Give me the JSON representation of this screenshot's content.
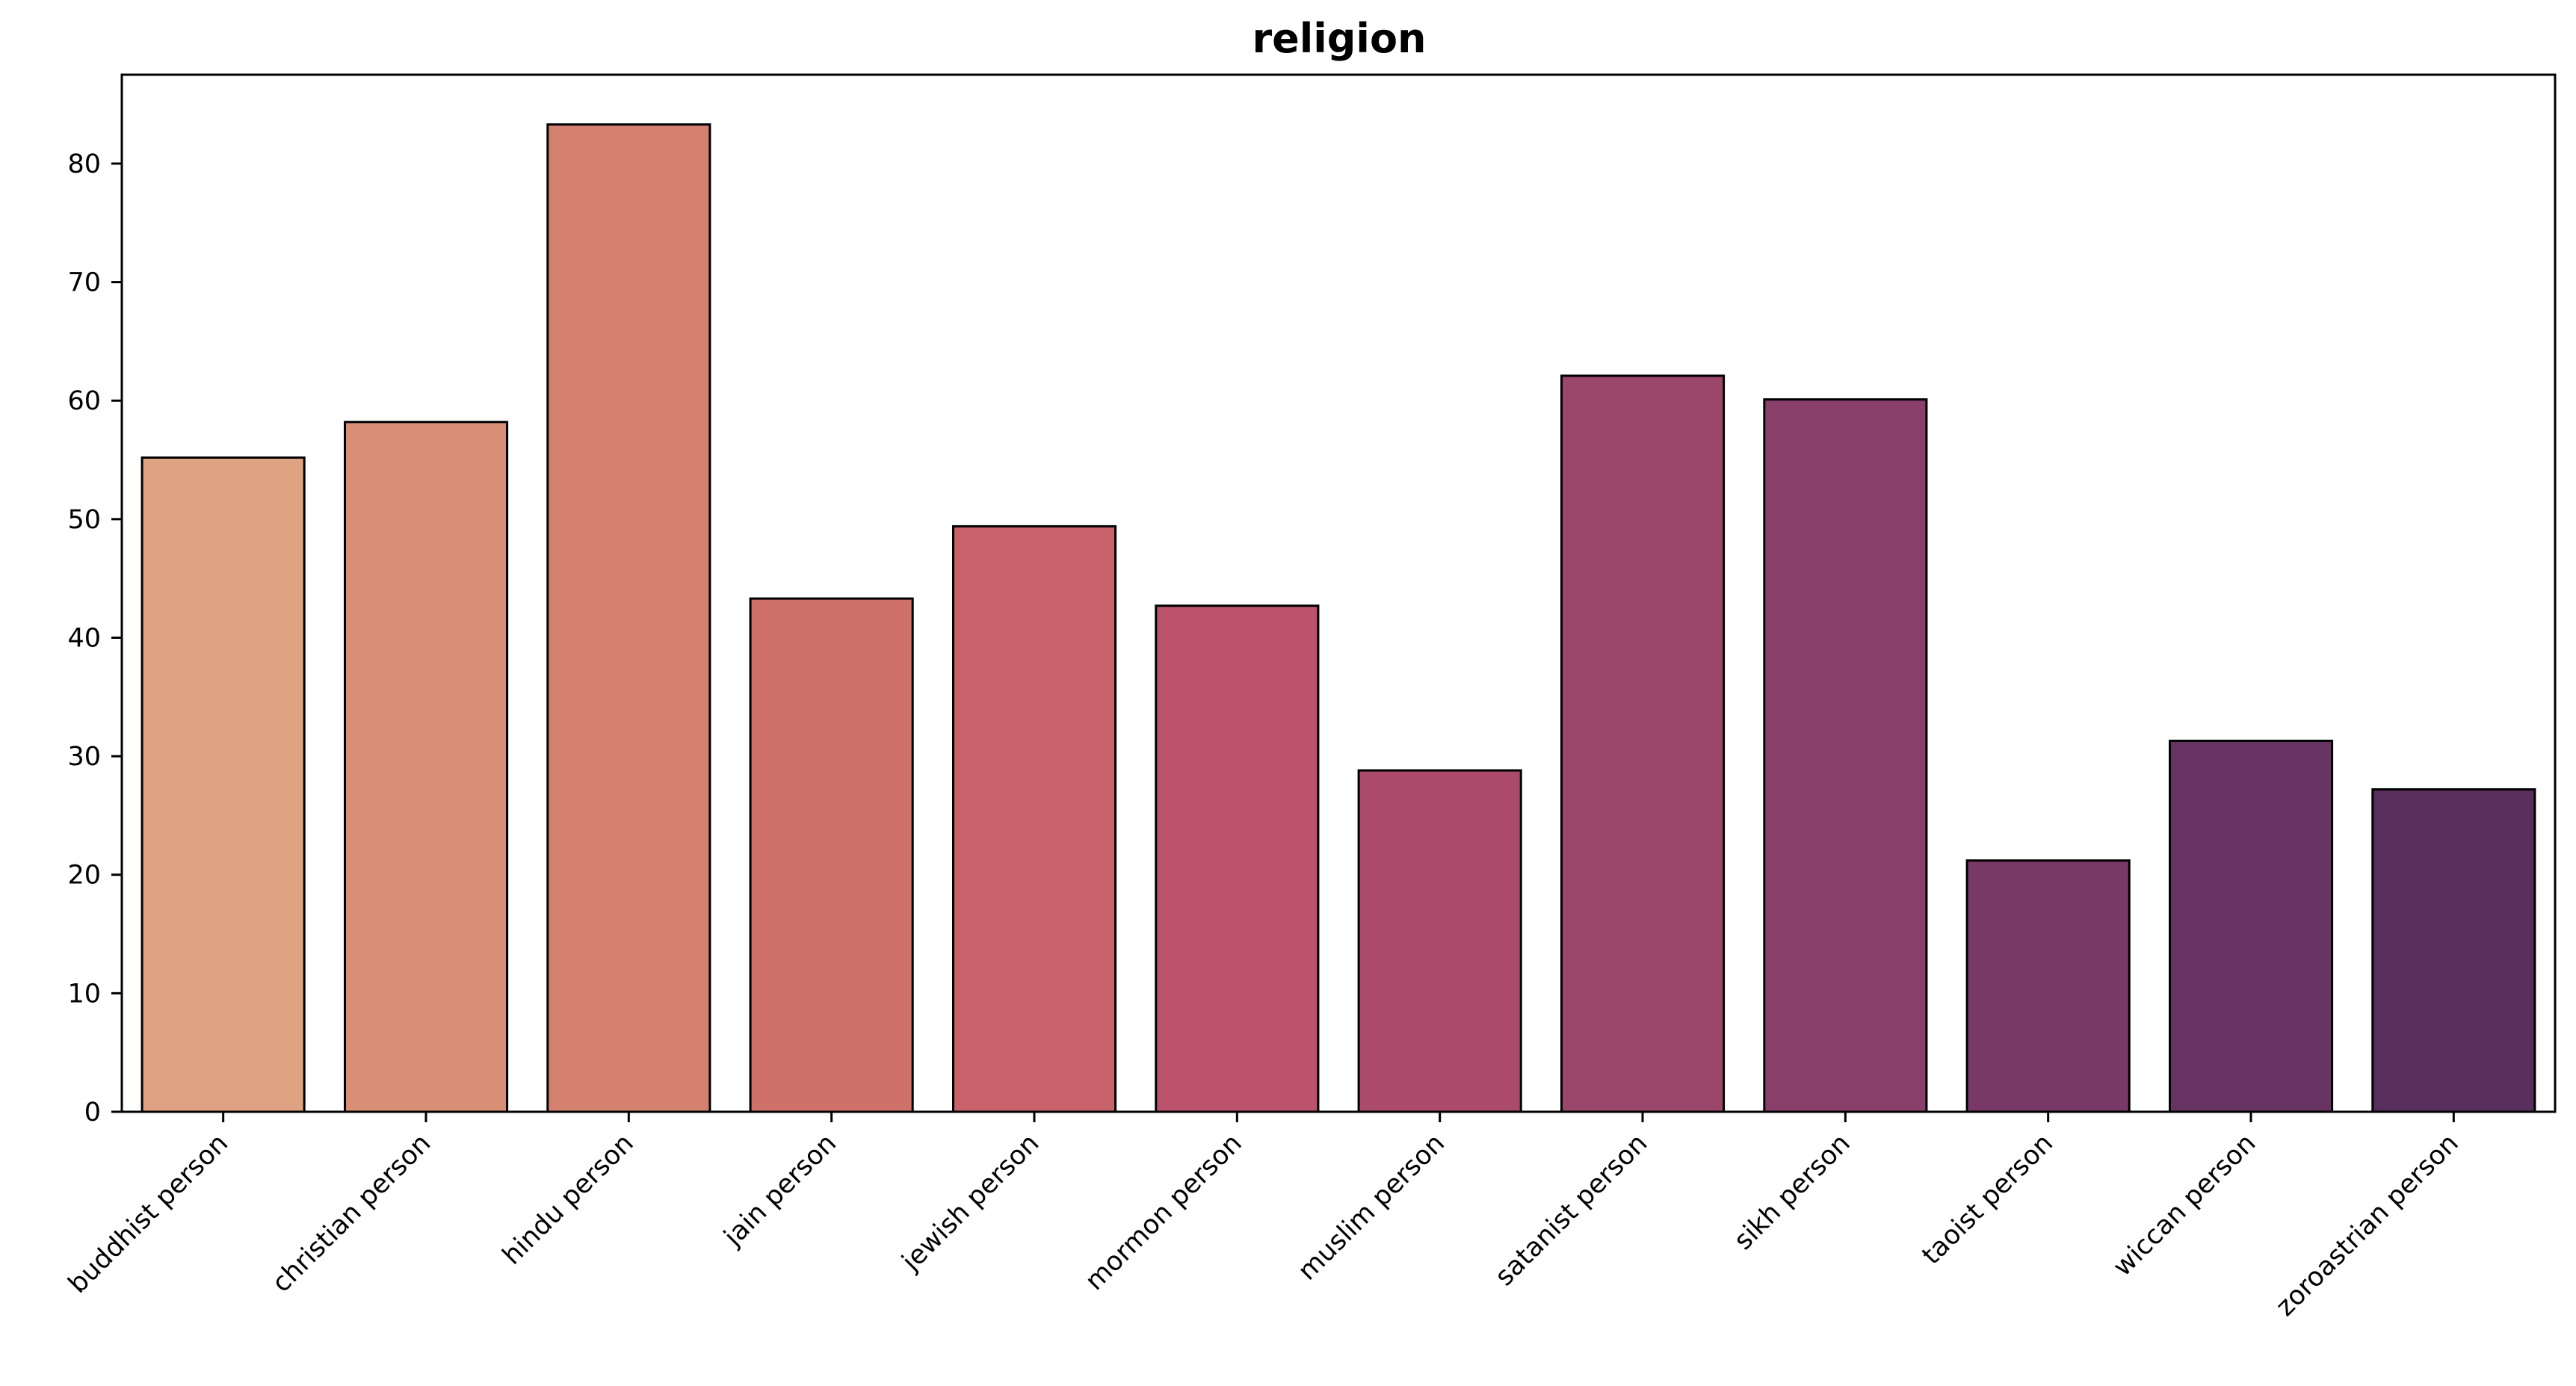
{
  "chart_data": {
    "type": "bar",
    "title": "religion",
    "xlabel": "",
    "ylabel": "",
    "ylim": [
      0,
      87.5
    ],
    "yticks": [
      0,
      10,
      20,
      30,
      40,
      50,
      60,
      70,
      80
    ],
    "grid": false,
    "legend": "none",
    "categories": [
      "buddhist person",
      "christian person",
      "hindu person",
      "jain person",
      "jewish person",
      "mormon person",
      "muslim person",
      "satanist person",
      "sikh person",
      "taoist person",
      "wiccan person",
      "zoroastrian person"
    ],
    "values": [
      55.2,
      58.2,
      83.3,
      43.3,
      49.4,
      42.7,
      28.8,
      62.1,
      60.1,
      21.2,
      31.3,
      27.2
    ],
    "colors": [
      "#dfa383",
      "#d98f75",
      "#d48170",
      "#cf706b",
      "#c7616a",
      "#ba536b",
      "#ab4a6a",
      "#9b476c",
      "#88406a",
      "#783868",
      "#673363",
      "#582e5c"
    ]
  }
}
